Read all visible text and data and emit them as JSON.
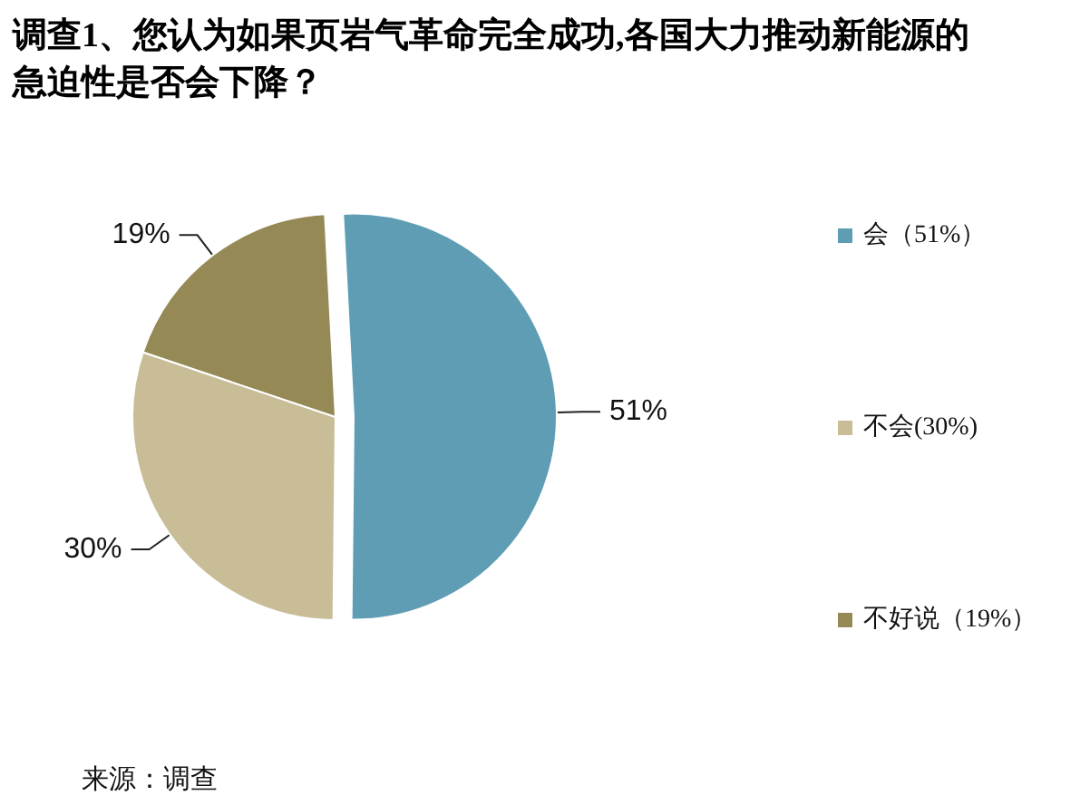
{
  "chart_data": {
    "type": "pie",
    "title": "调查1、您认为如果页岩气革命完全成功,各国大力推动新能源的急迫性是否会下降？",
    "categories": [
      "会（51%）",
      "不会(30%)",
      "不好说（19%）"
    ],
    "values": [
      51,
      30,
      19
    ],
    "colors": [
      "#5e9db3",
      "#c9bd97",
      "#958a56"
    ],
    "value_labels": [
      "51%",
      "30%",
      "19%"
    ],
    "legend": "right",
    "annotations": [
      "来源：调查"
    ]
  }
}
